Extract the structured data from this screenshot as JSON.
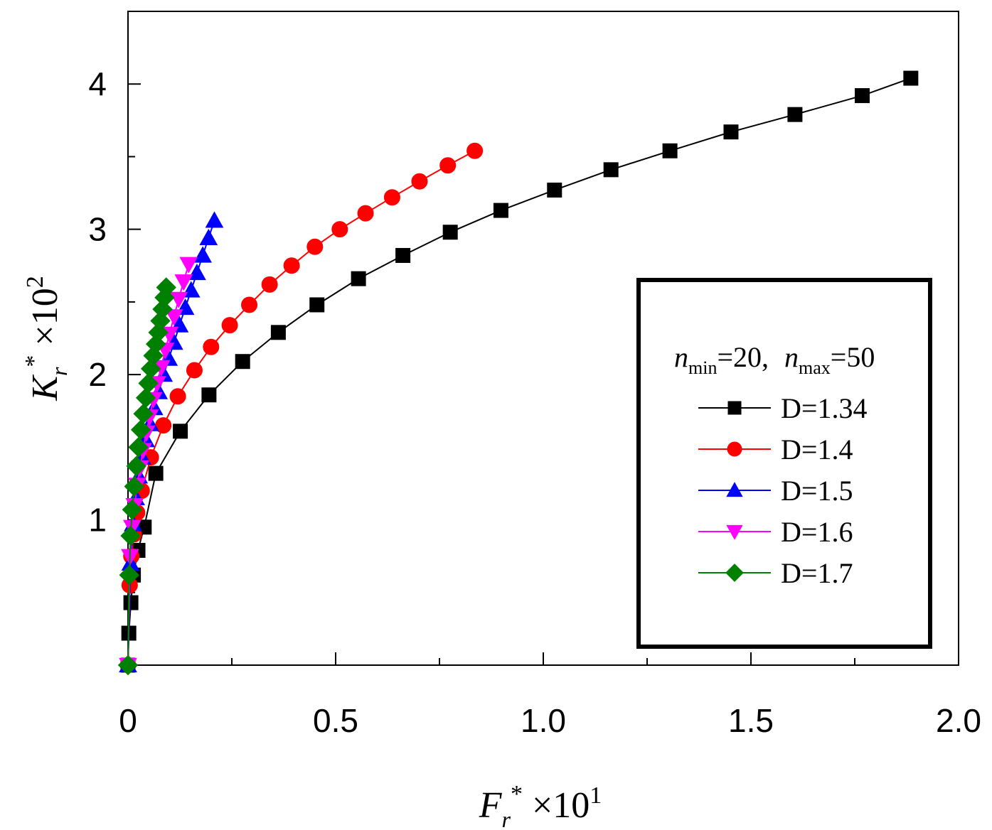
{
  "chart_data": {
    "type": "line",
    "title": "",
    "xlabel": {
      "main": "F",
      "sub": "r",
      "sup": "*",
      "times": " ×10",
      "exp": "1"
    },
    "ylabel": {
      "main": "K",
      "sub": "r",
      "sup": "*",
      "times": " ×10",
      "exp": "2"
    },
    "xlim": [
      0,
      2.0
    ],
    "ylim": [
      0,
      4.5
    ],
    "xticks": [
      {
        "value": 0,
        "label": "0"
      },
      {
        "value": 0.5,
        "label": "0.5"
      },
      {
        "value": 1.0,
        "label": "1.0"
      },
      {
        "value": 1.5,
        "label": "1.5"
      },
      {
        "value": 2.0,
        "label": "2.0"
      }
    ],
    "yticks": [
      {
        "value": 1,
        "label": "1"
      },
      {
        "value": 2,
        "label": "2"
      },
      {
        "value": 3,
        "label": "3"
      },
      {
        "value": 4,
        "label": "4"
      }
    ],
    "xminor": [
      0.25,
      0.75,
      1.25,
      1.75
    ],
    "yminor": [
      0.5,
      1.5,
      2.5,
      3.5
    ],
    "legend": {
      "placement": "right-middle",
      "header": {
        "n1": "n",
        "n1sub": "min",
        "n1val": "=20,",
        "n2": "n",
        "n2sub": "max",
        "n2val": "=50"
      }
    },
    "series": [
      {
        "name": "D=1.34",
        "color": "#000000",
        "marker": "square",
        "x": [
          0,
          0.002,
          0.007,
          0.013,
          0.024,
          0.039,
          0.067,
          0.126,
          0.195,
          0.276,
          0.362,
          0.455,
          0.555,
          0.662,
          0.776,
          0.898,
          1.027,
          1.163,
          1.305,
          1.452,
          1.606,
          1.768,
          1.885
        ],
        "y": [
          0,
          0.22,
          0.43,
          0.62,
          0.79,
          0.95,
          1.32,
          1.61,
          1.86,
          2.09,
          2.29,
          2.48,
          2.66,
          2.82,
          2.98,
          3.13,
          3.27,
          3.41,
          3.54,
          3.67,
          3.79,
          3.92,
          4.04
        ]
      },
      {
        "name": "D=1.4",
        "color": "#ff0000",
        "marker": "circle",
        "x": [
          0,
          0.004,
          0.008,
          0.014,
          0.022,
          0.033,
          0.055,
          0.085,
          0.12,
          0.16,
          0.2,
          0.245,
          0.292,
          0.341,
          0.394,
          0.45,
          0.51,
          0.572,
          0.636,
          0.702,
          0.77,
          0.835
        ],
        "y": [
          0,
          0.55,
          0.75,
          0.9,
          1.05,
          1.2,
          1.43,
          1.65,
          1.85,
          2.03,
          2.19,
          2.34,
          2.48,
          2.62,
          2.75,
          2.88,
          3.0,
          3.11,
          3.22,
          3.33,
          3.44,
          3.54
        ]
      },
      {
        "name": "D=1.5",
        "color": "#0000ff",
        "marker": "triangle-up",
        "x": [
          0,
          0.006,
          0.012,
          0.019,
          0.026,
          0.034,
          0.043,
          0.053,
          0.063,
          0.074,
          0.086,
          0.098,
          0.111,
          0.124,
          0.138,
          0.152,
          0.166,
          0.18,
          0.194,
          0.208
        ],
        "y": [
          0,
          0.7,
          0.97,
          1.15,
          1.3,
          1.43,
          1.55,
          1.66,
          1.77,
          1.88,
          2.0,
          2.11,
          2.22,
          2.34,
          2.46,
          2.58,
          2.7,
          2.82,
          2.94,
          3.06
        ]
      },
      {
        "name": "D=1.6",
        "color": "#ff00ff",
        "marker": "triangle-down",
        "x": [
          0,
          0.005,
          0.01,
          0.016,
          0.022,
          0.029,
          0.036,
          0.044,
          0.052,
          0.061,
          0.07,
          0.08,
          0.09,
          0.1,
          0.111,
          0.122,
          0.134,
          0.146
        ],
        "y": [
          0,
          0.75,
          0.95,
          1.1,
          1.24,
          1.36,
          1.48,
          1.6,
          1.71,
          1.83,
          1.94,
          2.05,
          2.17,
          2.28,
          2.4,
          2.52,
          2.64,
          2.76
        ]
      },
      {
        "name": "D=1.7",
        "color": "#008000",
        "marker": "diamond",
        "x": [
          0,
          0.003,
          0.006,
          0.01,
          0.015,
          0.02,
          0.025,
          0.031,
          0.037,
          0.043,
          0.049,
          0.055,
          0.061,
          0.067,
          0.073,
          0.078,
          0.083,
          0.088,
          0.092
        ],
        "y": [
          0,
          0.62,
          0.89,
          1.07,
          1.23,
          1.37,
          1.5,
          1.62,
          1.73,
          1.84,
          1.94,
          2.04,
          2.13,
          2.21,
          2.29,
          2.37,
          2.45,
          2.53,
          2.6
        ]
      }
    ]
  }
}
